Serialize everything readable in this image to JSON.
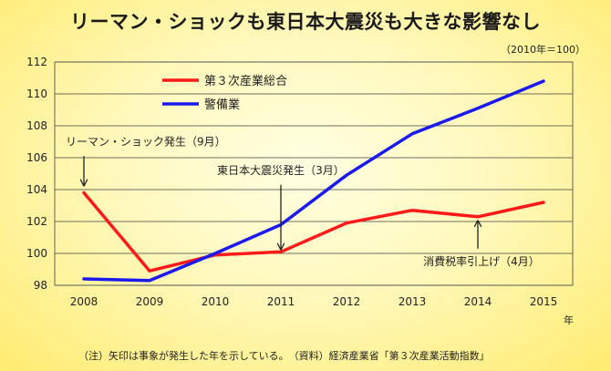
{
  "title": "リーマン・ショックも東日本大震災も大きな影響なし",
  "unit_note": "（2010年＝100）",
  "footnote": "（注）矢印は事象が発生した年を示している。　（資料）経済産業省「第３次産業活動指数」",
  "colors": {
    "series_1": "#ff1a1a",
    "series_2": "#1a1aee",
    "gridline": "#404040",
    "arrow": "#222222"
  },
  "chart_data": {
    "type": "line",
    "x": [
      2008,
      2009,
      2010,
      2011,
      2012,
      2013,
      2014,
      2015
    ],
    "x_tick_labels": [
      "2008",
      "2009",
      "2010",
      "2011",
      "2012",
      "2013",
      "2014",
      "2015"
    ],
    "x_unit": "年",
    "ylim": [
      98,
      112
    ],
    "y_ticks": [
      98,
      100,
      102,
      104,
      106,
      108,
      110,
      112
    ],
    "grid": true,
    "legend_position": "top-left",
    "series": [
      {
        "name": "第３次産業総合",
        "color": "#ff1a1a",
        "values": [
          103.8,
          98.9,
          99.9,
          100.1,
          101.9,
          102.7,
          102.3,
          103.2
        ]
      },
      {
        "name": "警備業",
        "color": "#1a1aee",
        "values": [
          98.4,
          98.3,
          100.0,
          101.8,
          104.9,
          107.5,
          109.1,
          110.8
        ]
      }
    ],
    "annotations": [
      {
        "label": "リーマン・ショック発生（9月）",
        "x": 2008,
        "y": 104.3,
        "from_y": 106.1
      },
      {
        "label": "東日本大震災発生（3月）",
        "x": 2011,
        "y": 100.3,
        "from_y": 104.3
      },
      {
        "label": "消費税率引上げ（4月）",
        "x": 2014,
        "y": 102.0,
        "from_y": 100.3
      }
    ]
  }
}
